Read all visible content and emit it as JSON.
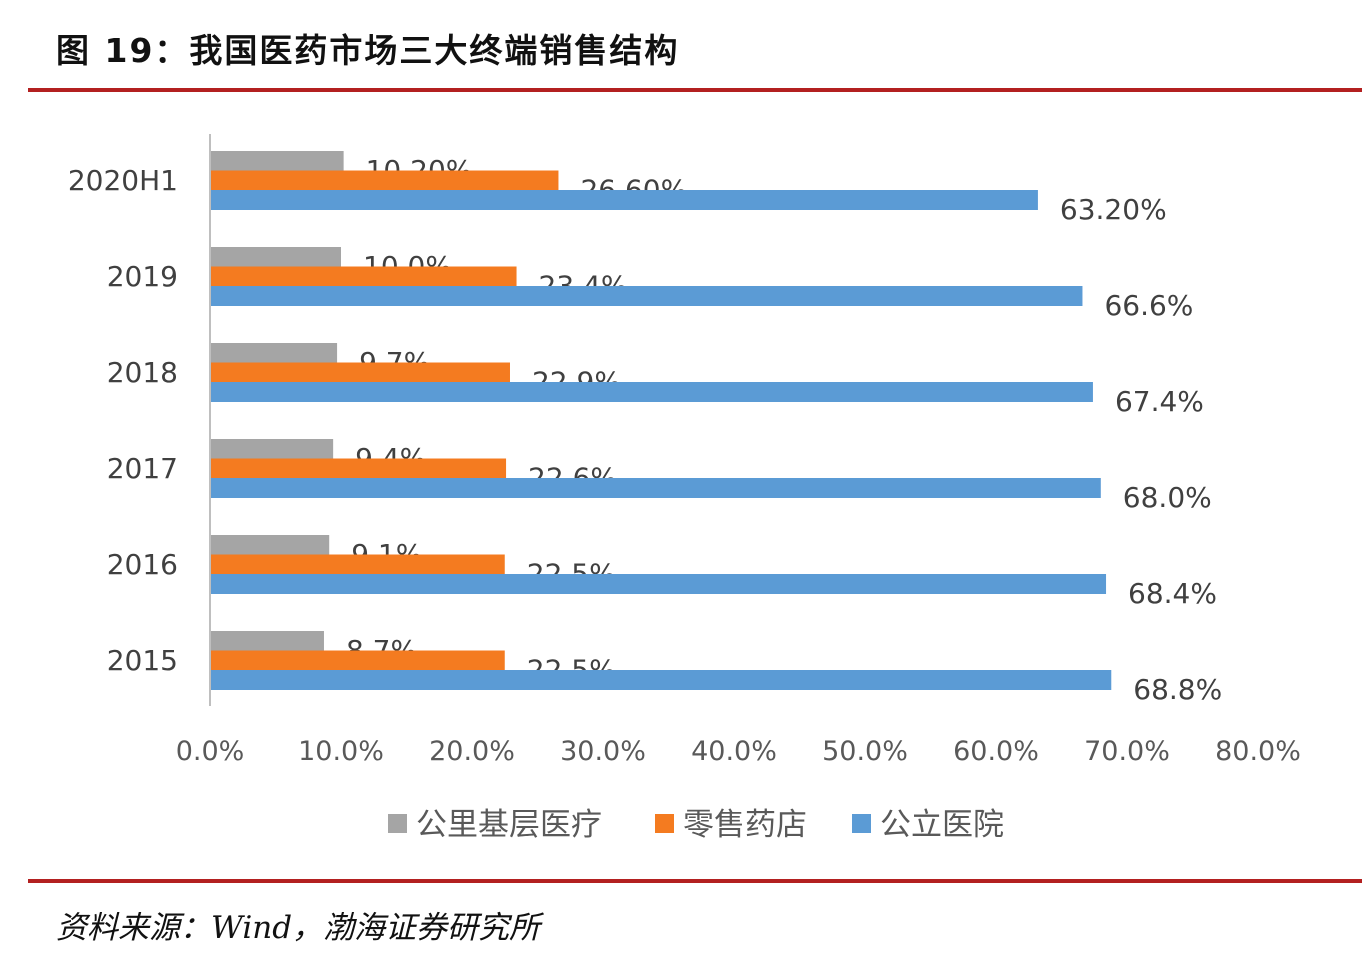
{
  "figure": {
    "title": "图 19：我国医药市场三大终端销售结构",
    "source": "资料来源：Wind，渤海证券研究所"
  },
  "chart_data": {
    "type": "bar",
    "orientation": "horizontal",
    "categories": [
      "2020H1",
      "2019",
      "2018",
      "2017",
      "2016",
      "2015"
    ],
    "series": [
      {
        "name": "公里基层医疗",
        "color": "#a5a5a5",
        "values": [
          10.2,
          10.0,
          9.7,
          9.4,
          9.1,
          8.7
        ],
        "labels": [
          "10.20%",
          "10.0%",
          "9.7%",
          "9.4%",
          "9.1%",
          "8.7%"
        ]
      },
      {
        "name": "零售药店",
        "color": "#f47b20",
        "values": [
          26.6,
          23.4,
          22.9,
          22.6,
          22.5,
          22.5
        ],
        "labels": [
          "26.60%",
          "23.4%",
          "22.9%",
          "22.6%",
          "22.5%",
          "22.5%"
        ]
      },
      {
        "name": "公立医院",
        "color": "#5b9bd5",
        "values": [
          63.2,
          66.6,
          67.4,
          68.0,
          68.4,
          68.8
        ],
        "labels": [
          "63.20%",
          "66.6%",
          "67.4%",
          "68.0%",
          "68.4%",
          "68.8%"
        ]
      }
    ],
    "x_ticks": [
      "0.0%",
      "10.0%",
      "20.0%",
      "30.0%",
      "40.0%",
      "50.0%",
      "60.0%",
      "70.0%",
      "80.0%"
    ],
    "xlim": [
      0,
      80
    ],
    "grid": false,
    "legend_position": "bottom"
  }
}
